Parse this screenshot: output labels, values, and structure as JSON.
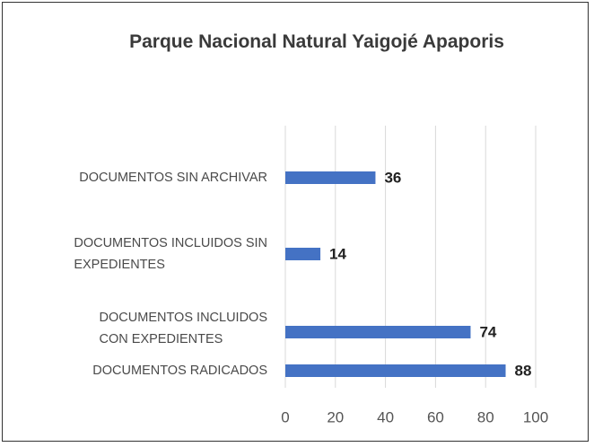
{
  "chart_data": {
    "type": "bar",
    "orientation": "horizontal",
    "title": "Parque Nacional Natural Yaigojé Apaporis",
    "categories": [
      "DOCUMENTOS SIN ARCHIVAR",
      "DOCUMENTOS INCLUIDOS SIN\nEXPEDIENTES",
      "DOCUMENTOS INCLUIDOS\nCON EXPEDIENTES",
      "DOCUMENTOS RADICADOS"
    ],
    "values": [
      36,
      14,
      74,
      88
    ],
    "color": "#4472c4",
    "xlim": [
      0,
      100
    ],
    "xticks": [
      0,
      20,
      40,
      60,
      80,
      100
    ],
    "grid": true
  }
}
